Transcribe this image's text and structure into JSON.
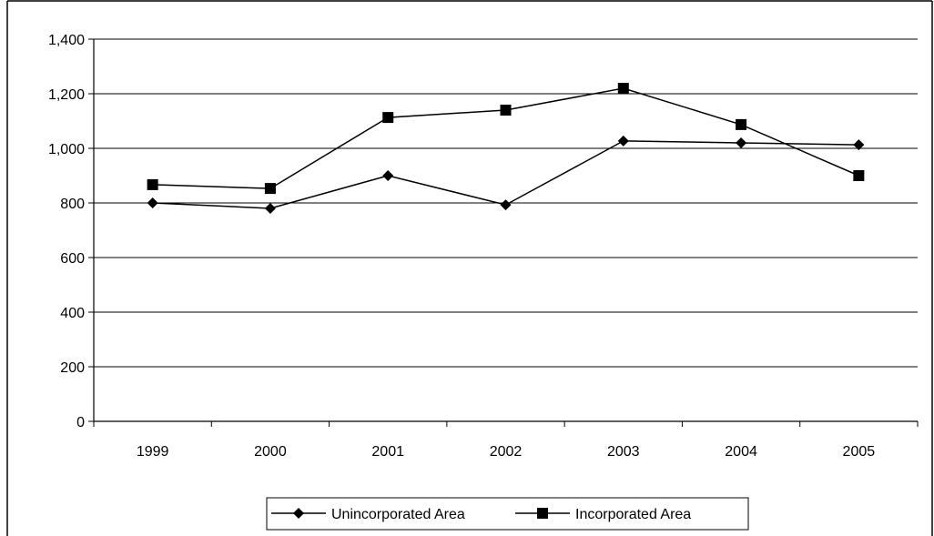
{
  "chart_data": {
    "type": "line",
    "title": "",
    "xlabel": "",
    "ylabel": "",
    "categories": [
      "1999",
      "2000",
      "2001",
      "2002",
      "2003",
      "2004",
      "2005"
    ],
    "ylim": [
      0,
      1400
    ],
    "yticks": [
      0,
      200,
      400,
      600,
      800,
      1000,
      1200,
      1400
    ],
    "ytick_labels": [
      "0",
      "200",
      "400",
      "600",
      "800",
      "1,000",
      "1,200",
      "1,400"
    ],
    "grid": "horizontal",
    "legend_position": "bottom",
    "series": [
      {
        "name": "Unincorporated Area",
        "marker": "diamond",
        "color": "#000000",
        "values": [
          800,
          780,
          900,
          793,
          1027,
          1020,
          1013
        ]
      },
      {
        "name": "Incorporated Area",
        "marker": "square",
        "color": "#000000",
        "values": [
          867,
          853,
          1113,
          1140,
          1220,
          1087,
          900
        ]
      }
    ]
  }
}
